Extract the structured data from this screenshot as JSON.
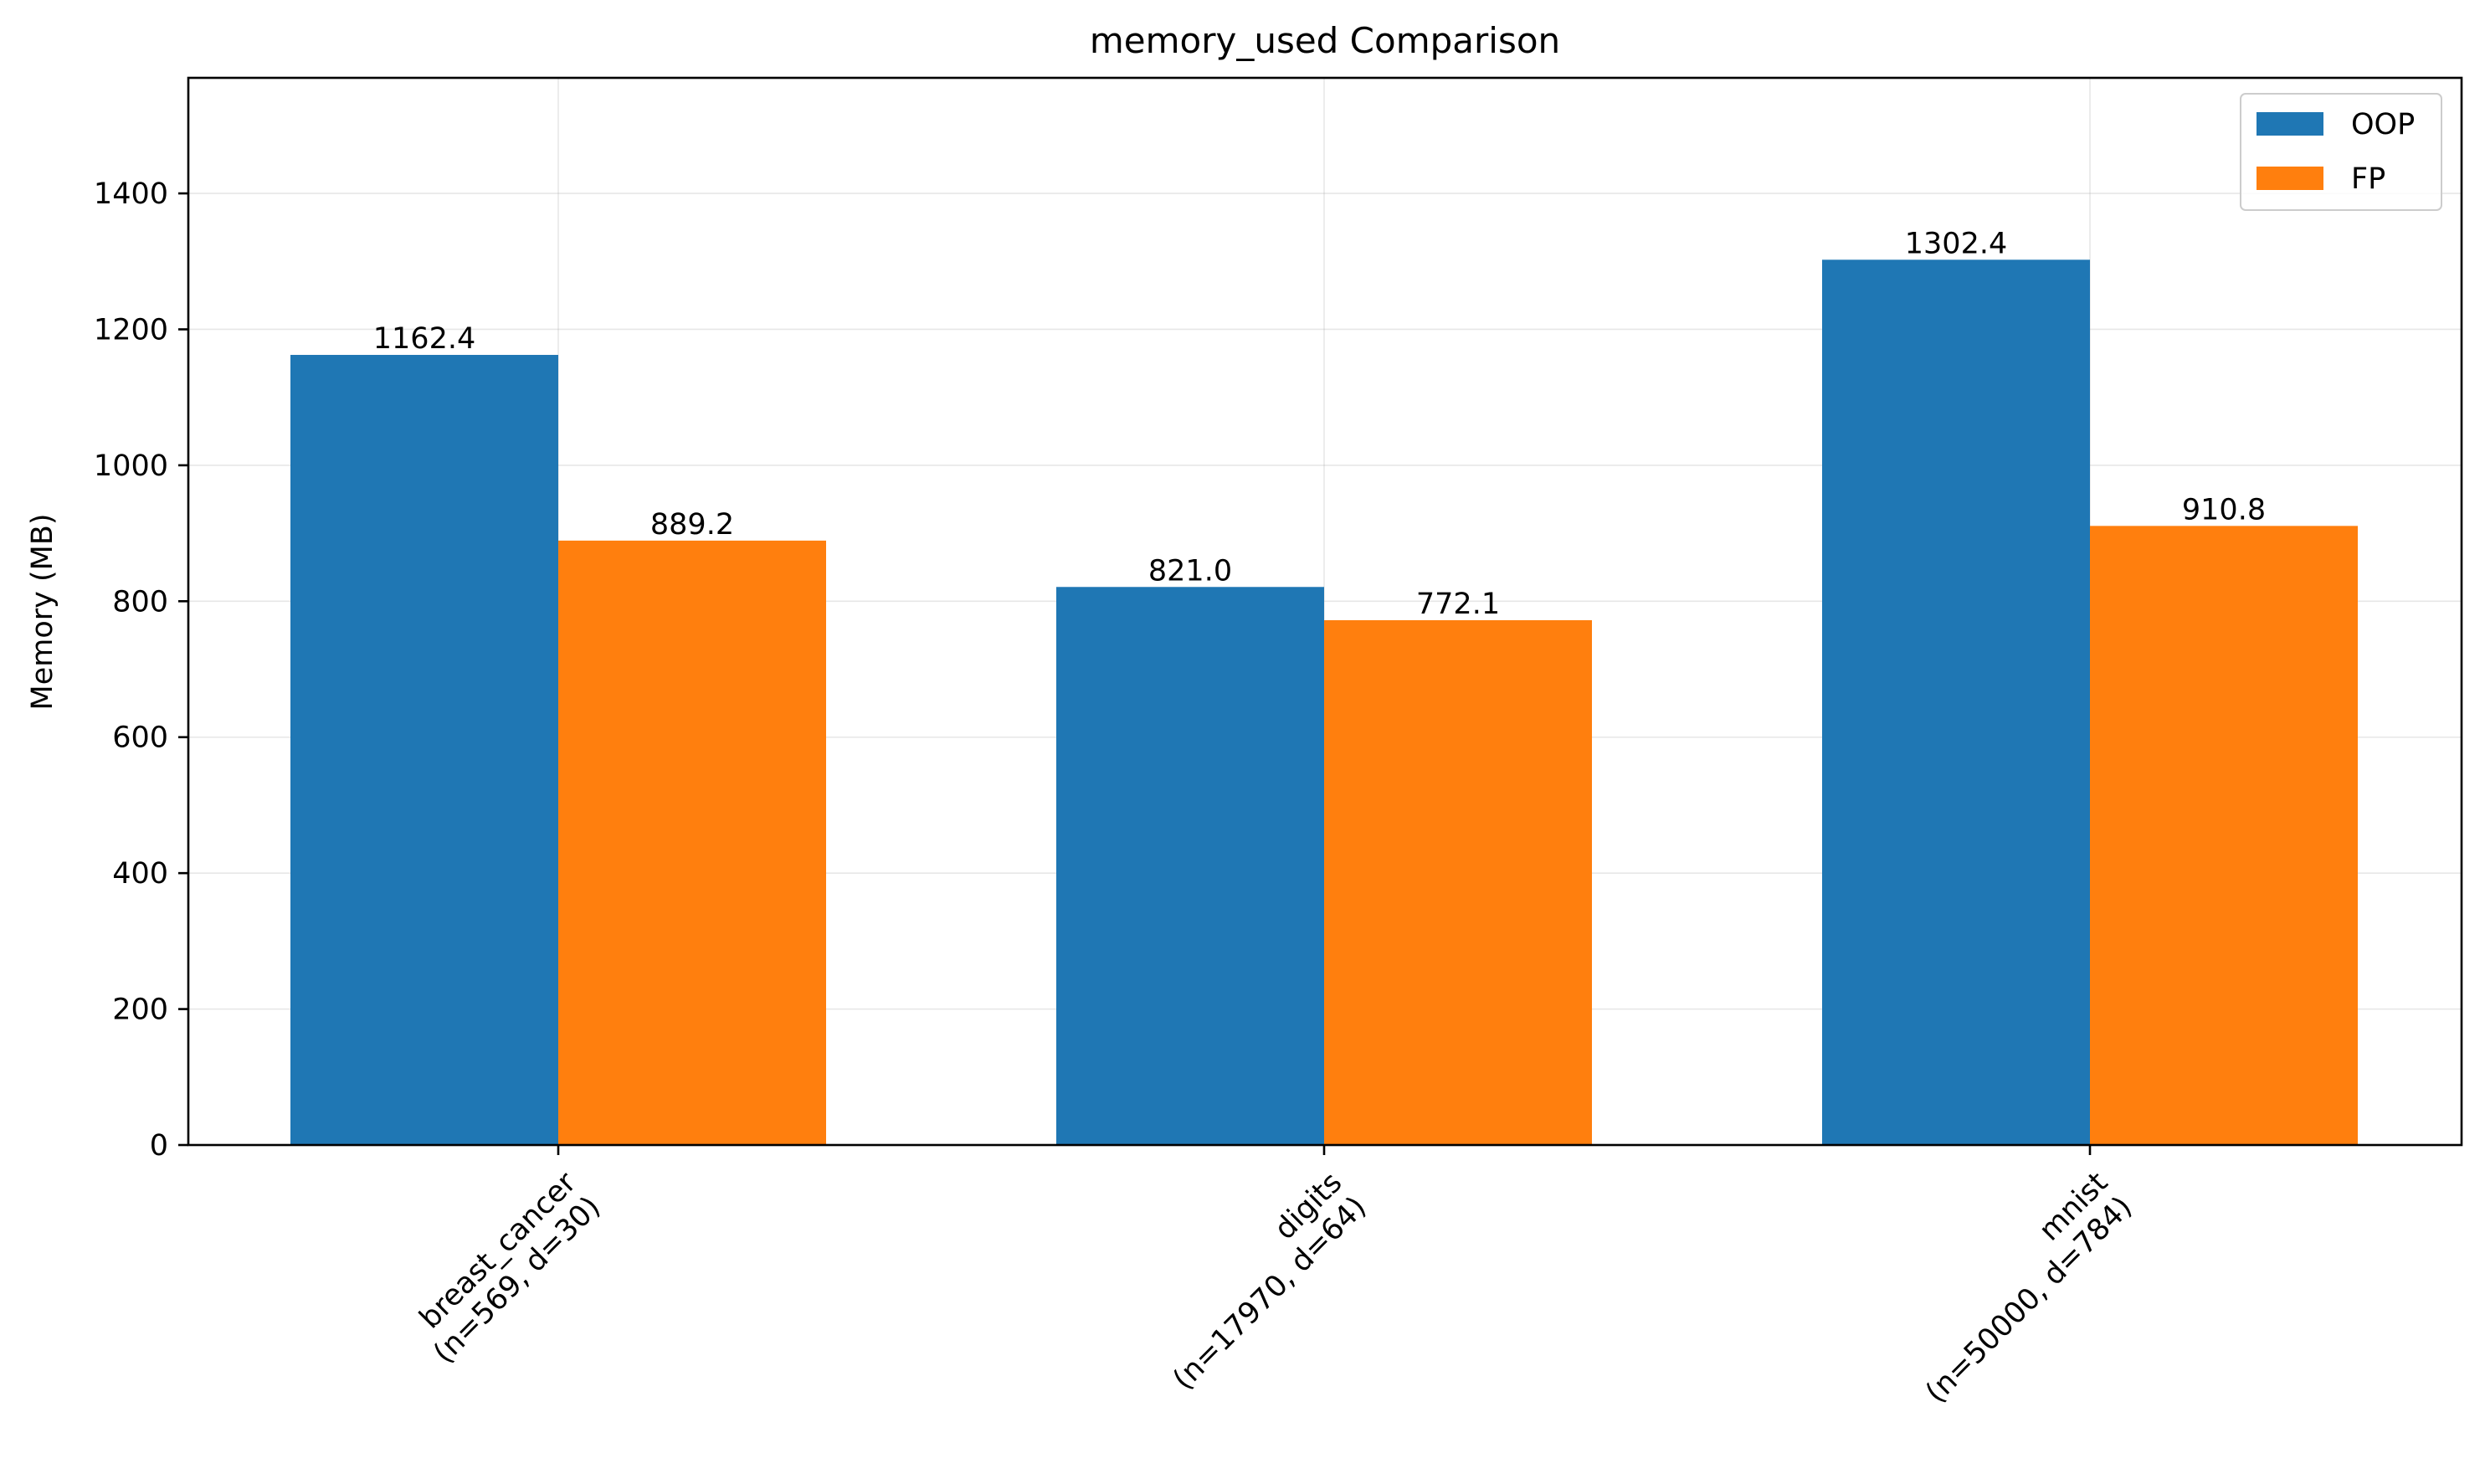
{
  "chart_data": {
    "type": "bar",
    "title": "memory_used Comparison",
    "xlabel": "",
    "ylabel": "Memory (MB)",
    "categories": [
      [
        "breast_cancer",
        "(n=569, d=30)"
      ],
      [
        "digits",
        "(n=17970, d=64)"
      ],
      [
        "mnist",
        "(n=50000, d=784)"
      ]
    ],
    "series": [
      {
        "name": "OOP",
        "color": "#1f77b4",
        "values": [
          1162.4,
          821.0,
          1302.4
        ],
        "labels": [
          "1162.4",
          "821.0",
          "1302.4"
        ]
      },
      {
        "name": "FP",
        "color": "#ff7f0e",
        "values": [
          889.2,
          772.1,
          910.8
        ],
        "labels": [
          "889.2",
          "772.1",
          "910.8"
        ]
      }
    ],
    "ylim": [
      0,
      1570
    ],
    "yticks": [
      0,
      200,
      400,
      600,
      800,
      1000,
      1200,
      1400
    ],
    "grid": true,
    "legend_position": "top-right"
  }
}
